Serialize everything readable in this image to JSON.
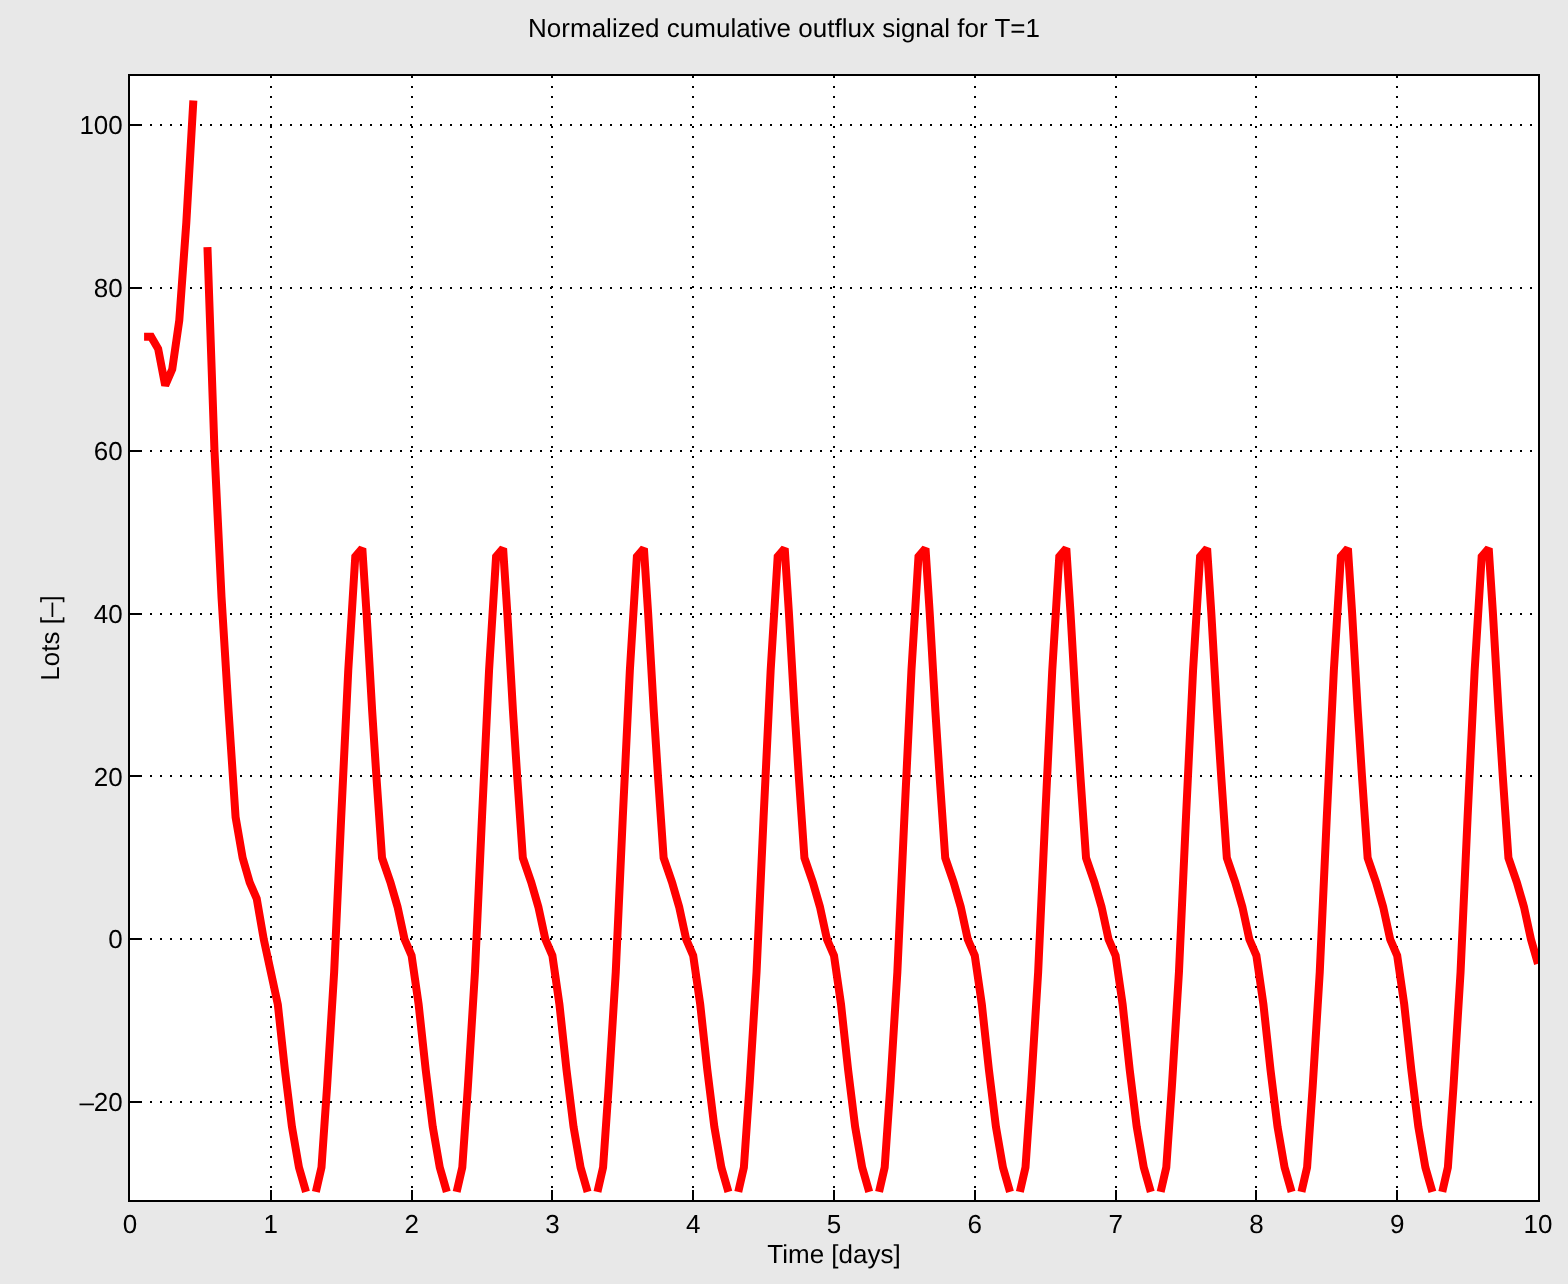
{
  "chart_data": {
    "type": "line",
    "title": "Normalized cumulative outflux signal for T=1",
    "xlabel": "Time [days]",
    "ylabel": "Lots [–]",
    "xlim": [
      0,
      10
    ],
    "ylim": [
      -32,
      106
    ],
    "xticks": [
      0,
      1,
      2,
      3,
      4,
      5,
      6,
      7,
      8,
      9,
      10
    ],
    "yticks": [
      {
        "value": -20,
        "label": "–20"
      },
      0,
      20,
      40,
      60,
      80,
      100
    ],
    "grid": true,
    "marker": "none",
    "line_style": "solid",
    "x": [
      0.1,
      0.15,
      0.2,
      0.25,
      0.3,
      0.35,
      0.4,
      0.45,
      0.5,
      0.55,
      0.6,
      0.65,
      0.7,
      0.75,
      0.8,
      0.85,
      0.9,
      0.95,
      1.0,
      1.05,
      1.1,
      1.15,
      1.2,
      1.25,
      1.28,
      1.32,
      1.36,
      1.4,
      1.45,
      1.5,
      1.55,
      1.6,
      1.65,
      1.68,
      1.72,
      1.75,
      1.79,
      1.85,
      1.9,
      1.95,
      2.0,
      2.05,
      2.1,
      2.15,
      2.2,
      2.25,
      2.28,
      2.32,
      2.36,
      2.4,
      2.45,
      2.5,
      2.55,
      2.6,
      2.65,
      2.68,
      2.72,
      2.75,
      2.79,
      2.85,
      2.9,
      2.95,
      3.0,
      3.05,
      3.1,
      3.15,
      3.2,
      3.25,
      3.28,
      3.32,
      3.36,
      3.4,
      3.45,
      3.5,
      3.55,
      3.6,
      3.65,
      3.68,
      3.72,
      3.75,
      3.79,
      3.85,
      3.9,
      3.95,
      4.0,
      4.05,
      4.1,
      4.15,
      4.2,
      4.25,
      4.28,
      4.32,
      4.36,
      4.4,
      4.45,
      4.5,
      4.55,
      4.6,
      4.65,
      4.68,
      4.72,
      4.75,
      4.79,
      4.85,
      4.9,
      4.95,
      5.0,
      5.05,
      5.1,
      5.15,
      5.2,
      5.25,
      5.28,
      5.32,
      5.36,
      5.4,
      5.45,
      5.5,
      5.55,
      5.6,
      5.65,
      5.68,
      5.72,
      5.75,
      5.79,
      5.85,
      5.9,
      5.95,
      6.0,
      6.05,
      6.1,
      6.15,
      6.2,
      6.25,
      6.28,
      6.32,
      6.36,
      6.4,
      6.45,
      6.5,
      6.55,
      6.6,
      6.65,
      6.68,
      6.72,
      6.75,
      6.79,
      6.85,
      6.9,
      6.95,
      7.0,
      7.05,
      7.1,
      7.15,
      7.2,
      7.25,
      7.28,
      7.32,
      7.36,
      7.4,
      7.45,
      7.5,
      7.55,
      7.6,
      7.65,
      7.68,
      7.72,
      7.75,
      7.79,
      7.85,
      7.9,
      7.95,
      8.0,
      8.05,
      8.1,
      8.15,
      8.2,
      8.25,
      8.28,
      8.32,
      8.36,
      8.4,
      8.45,
      8.5,
      8.55,
      8.6,
      8.65,
      8.68,
      8.72,
      8.75,
      8.79,
      8.85,
      8.9,
      8.95,
      9.0,
      9.05,
      9.1,
      9.15,
      9.2,
      9.25,
      9.28,
      9.32,
      9.36,
      9.4,
      9.45,
      9.5,
      9.55,
      9.6,
      9.65,
      9.68,
      9.72,
      9.75,
      9.79,
      9.85,
      9.9,
      9.95,
      10.0
    ],
    "series": [
      {
        "color": "#ff0000",
        "values": [
          74,
          74,
          72.5,
          68,
          70,
          76,
          88,
          103,
          null,
          85,
          60,
          42,
          28,
          15,
          10,
          7,
          5,
          0,
          -4,
          -8,
          -16,
          -23,
          -28,
          -31,
          null,
          -31,
          -28,
          -18,
          -4,
          15,
          33,
          47,
          48,
          40,
          28,
          20,
          10,
          7,
          4,
          0,
          -2,
          -8,
          -16,
          -23,
          -28,
          -31,
          null,
          -31,
          -28,
          -18,
          -4,
          15,
          33,
          47,
          48,
          40,
          28,
          20,
          10,
          7,
          4,
          0,
          -2,
          -8,
          -16,
          -23,
          -28,
          -31,
          null,
          -31,
          -28,
          -18,
          -4,
          15,
          33,
          47,
          48,
          40,
          28,
          20,
          10,
          7,
          4,
          0,
          -2,
          -8,
          -16,
          -23,
          -28,
          -31,
          null,
          -31,
          -28,
          -18,
          -4,
          15,
          33,
          47,
          48,
          40,
          28,
          20,
          10,
          7,
          4,
          0,
          -2,
          -8,
          -16,
          -23,
          -28,
          -31,
          null,
          -31,
          -28,
          -18,
          -4,
          15,
          33,
          47,
          48,
          40,
          28,
          20,
          10,
          7,
          4,
          0,
          -2,
          -8,
          -16,
          -23,
          -28,
          -31,
          null,
          -31,
          -28,
          -18,
          -4,
          15,
          33,
          47,
          48,
          40,
          28,
          20,
          10,
          7,
          4,
          0,
          -2,
          -8,
          -16,
          -23,
          -28,
          -31,
          null,
          -31,
          -28,
          -18,
          -4,
          15,
          33,
          47,
          48,
          40,
          28,
          20,
          10,
          7,
          4,
          0,
          -2,
          -8,
          -16,
          -23,
          -28,
          -31,
          null,
          -31,
          -28,
          -18,
          -4,
          15,
          33,
          47,
          48,
          40,
          28,
          20,
          10,
          7,
          4,
          0,
          -2,
          -8,
          -16,
          -23,
          -28,
          -31,
          null,
          -31,
          -28,
          -18,
          -4,
          15,
          33,
          47,
          48,
          40,
          28,
          20,
          10,
          7,
          4,
          0,
          -3
        ]
      }
    ]
  }
}
